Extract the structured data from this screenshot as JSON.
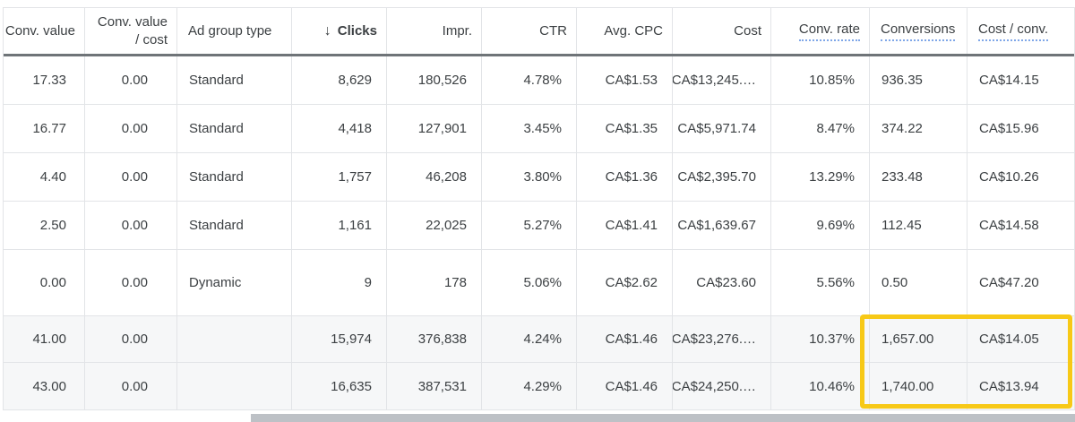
{
  "table": {
    "columns": [
      {
        "id": "conv_value",
        "label": "Conv. value",
        "align": "right"
      },
      {
        "id": "conv_value_cost",
        "label": "Conv. value / cost",
        "label_lines": [
          "Conv. value",
          "/ cost"
        ],
        "align": "right"
      },
      {
        "id": "ad_group_type",
        "label": "Ad group type",
        "align": "left"
      },
      {
        "id": "clicks",
        "label": "Clicks",
        "align": "right",
        "sorted": true,
        "sort_icon": "↓"
      },
      {
        "id": "impr",
        "label": "Impr.",
        "align": "right"
      },
      {
        "id": "ctr",
        "label": "CTR",
        "align": "right"
      },
      {
        "id": "avg_cpc",
        "label": "Avg. CPC",
        "align": "right"
      },
      {
        "id": "cost",
        "label": "Cost",
        "align": "right"
      },
      {
        "id": "conv_rate",
        "label": "Conv. rate",
        "align": "right",
        "tooltip_underline": true
      },
      {
        "id": "conversions",
        "label": "Conversions",
        "align": "left",
        "tooltip_underline": true,
        "clipped": true
      },
      {
        "id": "cost_conv",
        "label": "Cost / conv.",
        "align": "left",
        "tooltip_underline": true
      }
    ],
    "rows": [
      [
        "17.33",
        "0.00",
        "Standard",
        "8,629",
        "180,526",
        "4.78%",
        "CA$1.53",
        "CA$13,245.…",
        "10.85%",
        "936.35",
        "CA$14.15"
      ],
      [
        "16.77",
        "0.00",
        "Standard",
        "4,418",
        "127,901",
        "3.45%",
        "CA$1.35",
        "CA$5,971.74",
        "8.47%",
        "374.22",
        "CA$15.96"
      ],
      [
        "4.40",
        "0.00",
        "Standard",
        "1,757",
        "46,208",
        "3.80%",
        "CA$1.36",
        "CA$2,395.70",
        "13.29%",
        "233.48",
        "CA$10.26"
      ],
      [
        "2.50",
        "0.00",
        "Standard",
        "1,161",
        "22,025",
        "5.27%",
        "CA$1.41",
        "CA$1,639.67",
        "9.69%",
        "112.45",
        "CA$14.58"
      ],
      [
        "0.00",
        "0.00",
        "Dynamic",
        "9",
        "178",
        "5.06%",
        "CA$2.62",
        "CA$23.60",
        "5.56%",
        "0.50",
        "CA$47.20"
      ]
    ],
    "total_rows": [
      [
        "41.00",
        "0.00",
        "",
        "15,974",
        "376,838",
        "4.24%",
        "CA$1.46",
        "CA$23,276.…",
        "10.37%",
        "1,657.00",
        "CA$14.05"
      ],
      [
        "43.00",
        "0.00",
        "",
        "16,635",
        "387,531",
        "4.29%",
        "CA$1.46",
        "CA$24,250.…",
        "10.46%",
        "1,740.00",
        "CA$13.94"
      ]
    ]
  },
  "highlight_box": {
    "color": "#f7c917"
  },
  "scrollbar": {
    "thumb_color": "#bdc1c6"
  }
}
